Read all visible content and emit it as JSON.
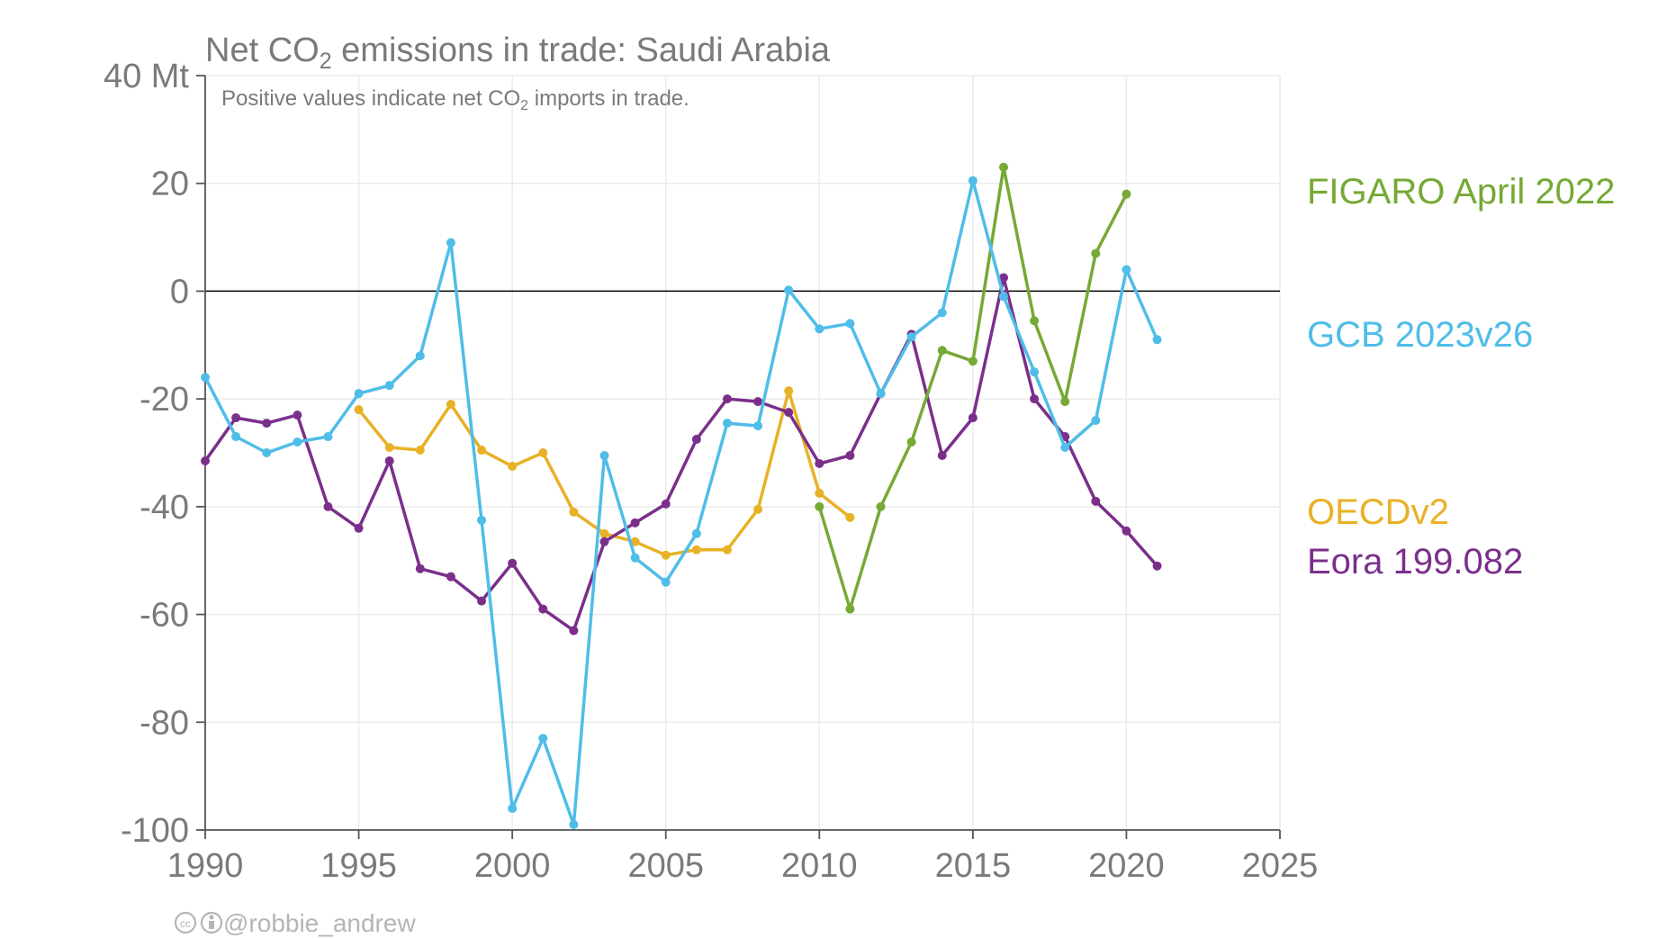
{
  "chart_data": {
    "type": "line",
    "title_parts": [
      "Net CO",
      "2",
      " emissions in trade: Saudi Arabia"
    ],
    "subtitle_parts": [
      "Positive values indicate net CO",
      "2",
      " imports in trade."
    ],
    "y_unit": "Mt",
    "ylim": [
      -100,
      40
    ],
    "xlim": [
      1990,
      2025
    ],
    "yticks": [
      40,
      20,
      0,
      -20,
      -40,
      -60,
      -80,
      -100
    ],
    "xticks": [
      1990,
      1995,
      2000,
      2005,
      2010,
      2015,
      2020,
      2025
    ],
    "grid": true,
    "legend_placement": "right",
    "series": [
      {
        "name": "FIGARO April 2022",
        "color": "#76a935",
        "x": [
          2010,
          2011,
          2012,
          2013,
          2014,
          2015,
          2016,
          2017,
          2018,
          2019,
          2020
        ],
        "y": [
          -40,
          -59,
          -40,
          -28,
          -11,
          -13,
          23,
          -5.5,
          -20.5,
          7,
          18
        ]
      },
      {
        "name": "GCB 2023v26",
        "color": "#4fbde8",
        "x": [
          1990,
          1991,
          1992,
          1993,
          1994,
          1995,
          1996,
          1997,
          1998,
          1999,
          2000,
          2001,
          2002,
          2003,
          2004,
          2005,
          2006,
          2007,
          2008,
          2009,
          2010,
          2011,
          2012,
          2013,
          2014,
          2015,
          2016,
          2017,
          2018,
          2019,
          2020,
          2021
        ],
        "y": [
          -16,
          -27,
          -30,
          -28,
          -27,
          -19,
          -17.5,
          -12,
          9,
          -42.5,
          -96,
          -83,
          -99,
          -30.5,
          -49.5,
          -54,
          -45,
          -24.5,
          -25,
          0.2,
          -7,
          -6,
          -19,
          -8.5,
          -4,
          20.5,
          -1,
          -15,
          -29,
          -24,
          4,
          -9
        ]
      },
      {
        "name": "OECDv2",
        "color": "#e8b126",
        "x": [
          1995,
          1996,
          1997,
          1998,
          1999,
          2000,
          2001,
          2002,
          2003,
          2004,
          2005,
          2006,
          2007,
          2008,
          2009,
          2010,
          2011
        ],
        "y": [
          -22,
          -29,
          -29.5,
          -21,
          -29.5,
          -32.5,
          -30,
          -41,
          -45,
          -46.5,
          -49,
          -48,
          -48,
          -40.5,
          -18.5,
          -37.5,
          -42
        ]
      },
      {
        "name": "Eora 199.082",
        "color": "#7b2f8b",
        "x": [
          1990,
          1991,
          1992,
          1993,
          1994,
          1995,
          1996,
          1997,
          1998,
          1999,
          2000,
          2001,
          2002,
          2003,
          2004,
          2005,
          2006,
          2007,
          2008,
          2009,
          2010,
          2011,
          2012,
          2013,
          2014,
          2015,
          2016,
          2017,
          2018,
          2019,
          2020,
          2021
        ],
        "y": [
          -31.5,
          -23.5,
          -24.5,
          -23,
          -40,
          -44,
          -31.5,
          -51.5,
          -53,
          -57.5,
          -50.5,
          -59,
          -63,
          -46.5,
          -43,
          -39.5,
          -27.5,
          -20,
          -20.5,
          -22.5,
          -32,
          -30.5,
          -19,
          -8,
          -30.5,
          -23.5,
          2.5,
          -20,
          -27,
          -39,
          -44.5,
          -51
        ]
      }
    ]
  },
  "credit": {
    "icons": [
      "cc-icon",
      "attribution-icon"
    ],
    "handle": "@robbie_andrew"
  }
}
